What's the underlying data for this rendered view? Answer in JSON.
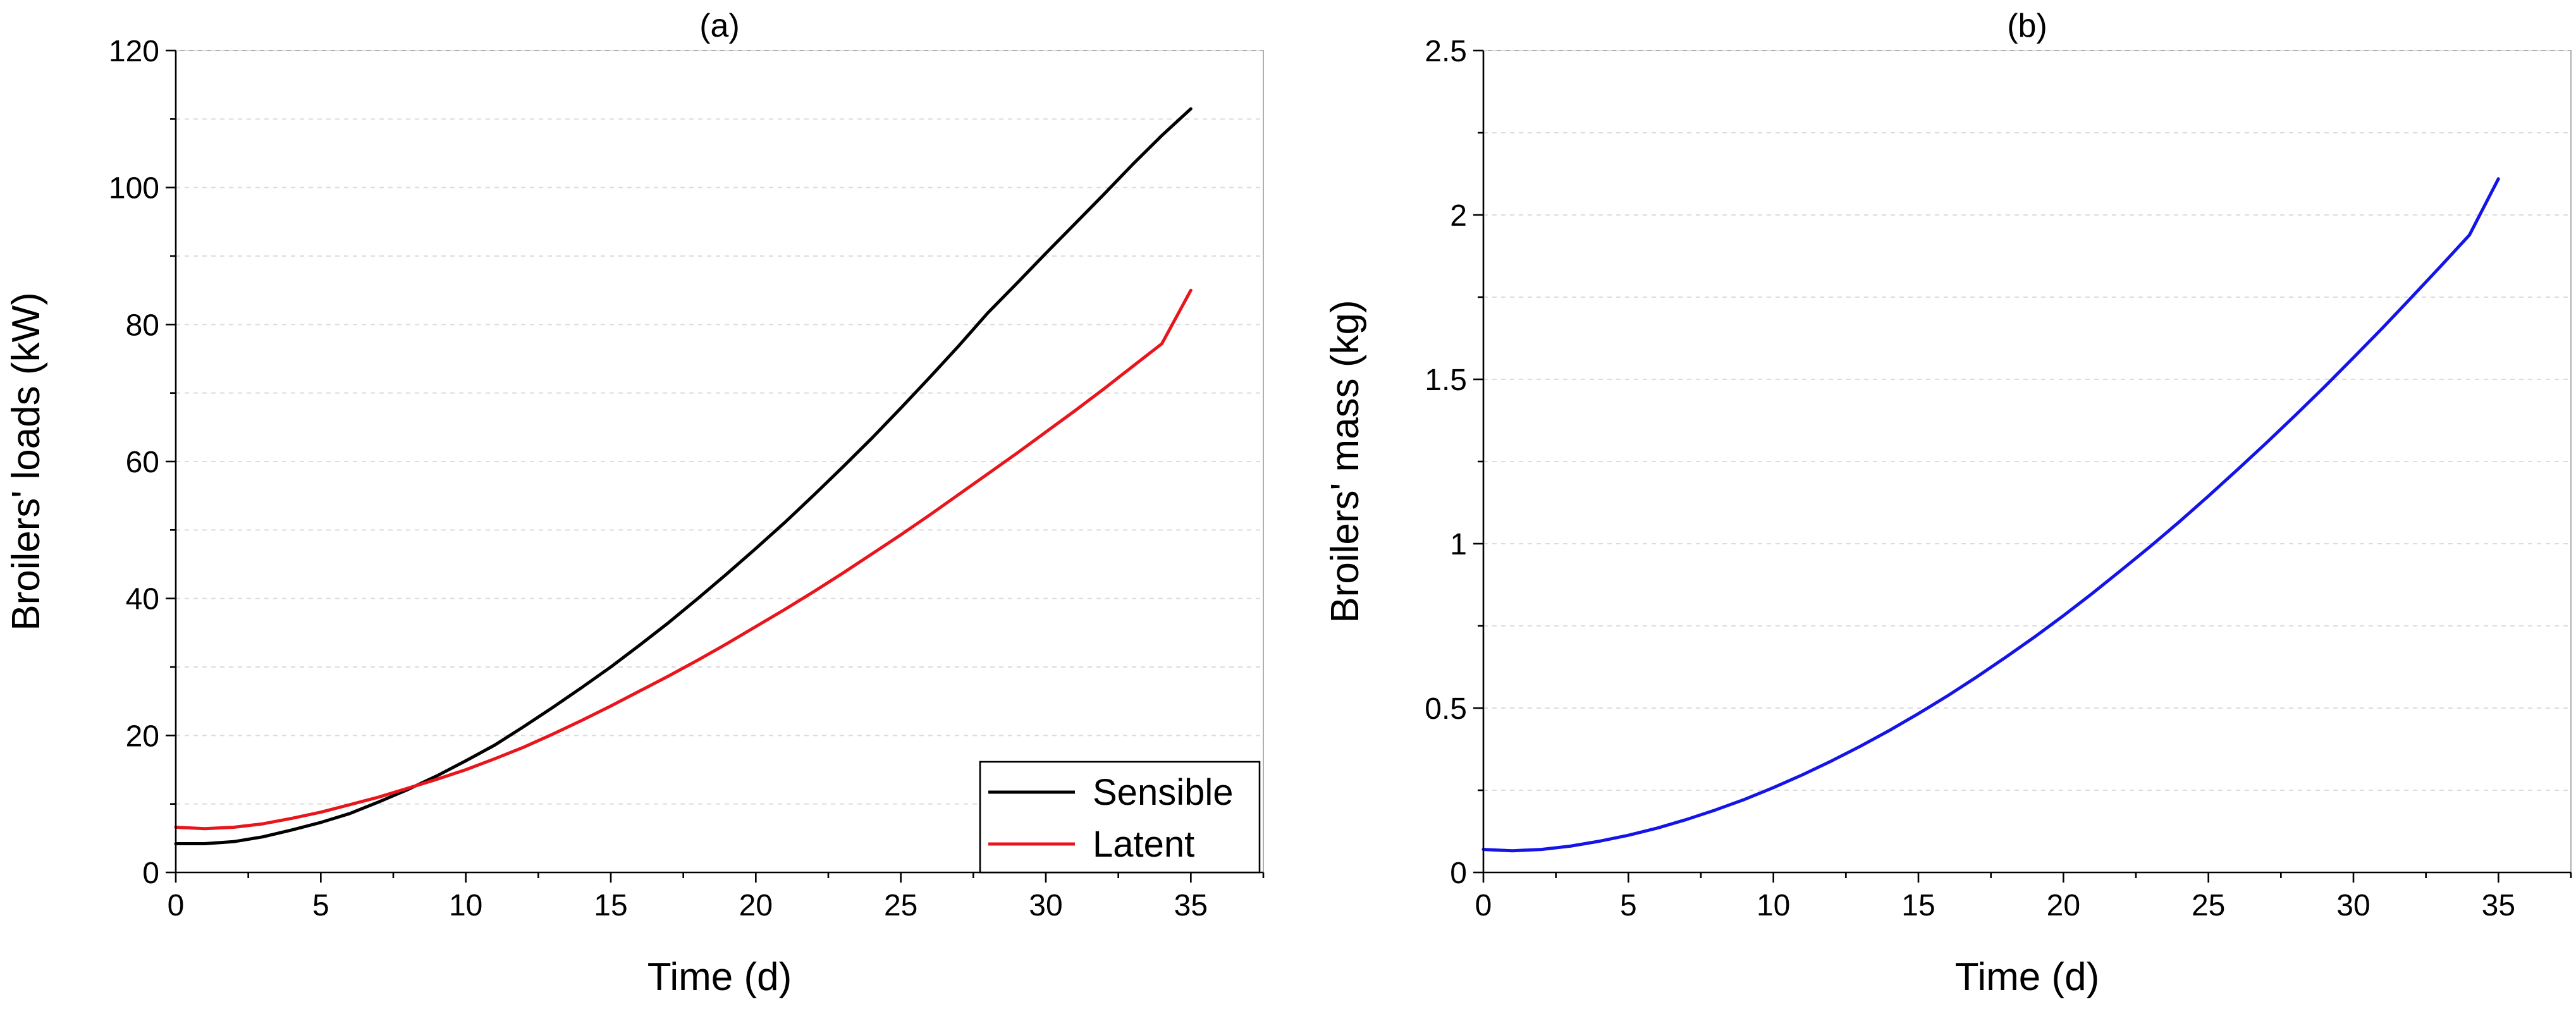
{
  "chart_data": [
    {
      "type": "line",
      "title": "(a)",
      "xlabel": "Time (d)",
      "ylabel": "Broilers' loads (kW)",
      "xlim": [
        0,
        37.5
      ],
      "ylim": [
        0,
        120
      ],
      "xticks": [
        0,
        5,
        10,
        15,
        20,
        25,
        30,
        35
      ],
      "yticks": [
        0,
        20,
        40,
        60,
        80,
        100,
        120
      ],
      "grid": true,
      "legend": "bottom-right",
      "x": [
        0,
        1,
        2,
        3,
        4,
        5,
        6,
        7,
        8,
        9,
        10,
        11,
        12,
        13,
        14,
        15,
        16,
        17,
        18,
        19,
        20,
        21,
        22,
        23,
        24,
        25,
        26,
        27,
        28,
        29,
        30,
        31,
        32,
        33,
        34,
        35
      ],
      "series": [
        {
          "name": "Sensible",
          "color": "#000000",
          "values": [
            4.2,
            4.2,
            4.5,
            5.2,
            6.2,
            7.3,
            8.6,
            10.3,
            12.1,
            14.1,
            16.3,
            18.6,
            21.3,
            24.1,
            27.0,
            30.0,
            33.2,
            36.5,
            40.0,
            43.6,
            47.3,
            51.1,
            55.1,
            59.2,
            63.4,
            67.8,
            72.3,
            76.9,
            81.7,
            86.0,
            90.4,
            94.7,
            99.0,
            103.4,
            107.6,
            111.5
          ]
        },
        {
          "name": "Latent",
          "color": "#e8161c",
          "values": [
            6.6,
            6.4,
            6.6,
            7.1,
            7.9,
            8.8,
            9.9,
            11.0,
            12.3,
            13.6,
            15.0,
            16.6,
            18.3,
            20.2,
            22.2,
            24.3,
            26.5,
            28.7,
            31.0,
            33.4,
            35.9,
            38.4,
            41.0,
            43.7,
            46.5,
            49.3,
            52.2,
            55.2,
            58.2,
            61.2,
            64.3,
            67.4,
            70.6,
            73.9,
            77.2,
            85.0
          ]
        }
      ]
    },
    {
      "type": "line",
      "title": "(b)",
      "xlabel": "Time (d)",
      "ylabel": "Broilers' mass (kg)",
      "xlim": [
        0,
        37.5
      ],
      "ylim": [
        0,
        2.5
      ],
      "xticks": [
        0,
        5,
        10,
        15,
        20,
        25,
        30,
        35
      ],
      "yticks": [
        0,
        0.5,
        1,
        1.5,
        2,
        2.5
      ],
      "ytick_labels": [
        "0",
        "0.5",
        "1",
        "1.5",
        "2",
        "2.5"
      ],
      "grid": true,
      "x": [
        0,
        1,
        2,
        3,
        4,
        5,
        6,
        7,
        8,
        9,
        10,
        11,
        12,
        13,
        14,
        15,
        16,
        17,
        18,
        19,
        20,
        21,
        22,
        23,
        24,
        25,
        26,
        27,
        28,
        29,
        30,
        31,
        32,
        33,
        34,
        35
      ],
      "series": [
        {
          "name": "Broilers' mass",
          "color": "#1414e6",
          "values": [
            0.07,
            0.066,
            0.07,
            0.08,
            0.095,
            0.113,
            0.135,
            0.161,
            0.19,
            0.222,
            0.258,
            0.297,
            0.339,
            0.384,
            0.432,
            0.483,
            0.537,
            0.594,
            0.654,
            0.716,
            0.781,
            0.849,
            0.92,
            0.992,
            1.067,
            1.145,
            1.225,
            1.307,
            1.391,
            1.477,
            1.566,
            1.656,
            1.749,
            1.843,
            1.939,
            2.11
          ]
        }
      ]
    }
  ]
}
